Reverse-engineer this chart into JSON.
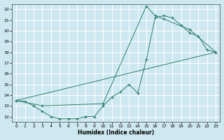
{
  "xlabel": "Humidex (Indice chaleur)",
  "bg_color": "#cde8f0",
  "grid_color": "#ffffff",
  "line_color": "#2e7d6b",
  "xlim": [
    -0.5,
    23.5
  ],
  "ylim": [
    11.5,
    22.5
  ],
  "xticks": [
    0,
    1,
    2,
    3,
    4,
    5,
    6,
    7,
    8,
    9,
    10,
    11,
    12,
    13,
    14,
    15,
    16,
    17,
    18,
    19,
    20,
    21,
    22,
    23
  ],
  "yticks": [
    12,
    13,
    14,
    15,
    16,
    17,
    18,
    19,
    20,
    21,
    22
  ],
  "line1_x": [
    0,
    1,
    2,
    3,
    4,
    5,
    6,
    7,
    8,
    9,
    10,
    11,
    12,
    13,
    14,
    15,
    16,
    17,
    18,
    19,
    20,
    21,
    22,
    23
  ],
  "line1_y": [
    13.5,
    13.4,
    13.0,
    12.5,
    12.0,
    11.8,
    11.8,
    11.8,
    12.0,
    12.0,
    13.0,
    13.8,
    14.3,
    15.0,
    14.2,
    17.3,
    21.2,
    21.4,
    21.2,
    20.5,
    19.8,
    19.5,
    18.2,
    18.0
  ],
  "line2_x": [
    0,
    23
  ],
  "line2_y": [
    13.5,
    18.0
  ],
  "line3_x": [
    0,
    3,
    10,
    15,
    16,
    17,
    20,
    23
  ],
  "line3_y": [
    13.5,
    13.0,
    13.2,
    22.3,
    21.4,
    21.1,
    20.1,
    18.0
  ]
}
